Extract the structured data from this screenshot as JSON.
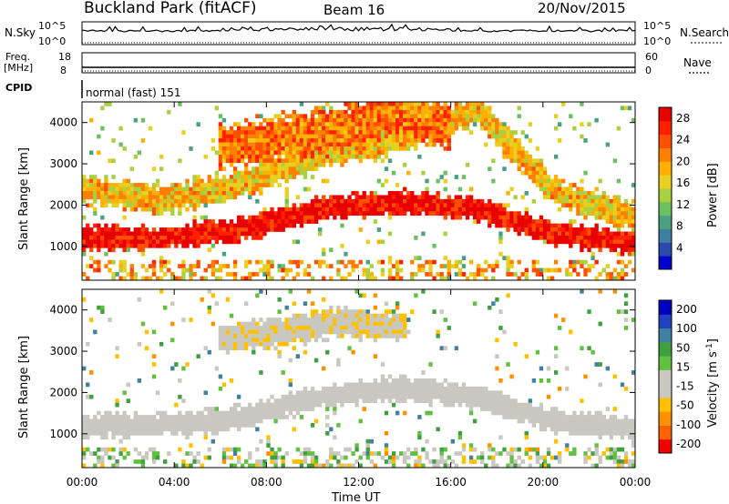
{
  "header": {
    "station": "Buckland Park (fitACF)",
    "beam": "Beam 16",
    "date": "20/Nov/2015"
  },
  "top_panels": {
    "nsky": {
      "label": "N.Sky",
      "tick_top": "10^5",
      "tick_bottom": "10^0"
    },
    "nsearch": {
      "label": "N.Search",
      "tick_top": "10^5",
      "tick_bottom": "10^0"
    },
    "freq": {
      "label_line1": "Freq.",
      "label_line2": "[MHz]",
      "tick_top": "18",
      "tick_bottom": "8"
    },
    "nave": {
      "label": "Nave",
      "tick_top": "60",
      "tick_bottom": "0"
    },
    "cpid": {
      "label": "CPID",
      "value": "normal (fast) 151"
    }
  },
  "colors": {
    "power_scale": [
      "#0000d0",
      "#2a48b0",
      "#3d7fa0",
      "#4aa080",
      "#6cc060",
      "#a8d040",
      "#e8d020",
      "#ffb000",
      "#ff8000",
      "#ff5000",
      "#ff2000",
      "#e80000"
    ],
    "velocity_scale": [
      "#f00000",
      "#ff6000",
      "#ff9000",
      "#ffc000",
      "#c8c8c0",
      "#c8c8c0",
      "#60c040",
      "#40a040",
      "#4080a0",
      "#2040c0",
      "#0000c0"
    ]
  },
  "chart_data": [
    {
      "type": "heatmap",
      "title": "Power",
      "xlabel": "Time UT",
      "ylabel": "Slant Range [km]",
      "xlim": [
        "00:00",
        "24:00"
      ],
      "ylim": [
        180,
        4500
      ],
      "x_ticks": [
        "00:00",
        "04:00",
        "08:00",
        "12:00",
        "16:00",
        "20:00",
        "00:00"
      ],
      "y_ticks": [
        1000,
        2000,
        3000,
        4000
      ],
      "colorbar_label": "Power [dB]",
      "colorbar_ticks": [
        4,
        8,
        12,
        16,
        20,
        24,
        28
      ],
      "colorbar_range": [
        0,
        30
      ],
      "features": [
        {
          "name": "strong band",
          "t_start": 0,
          "t_end": 24,
          "range_center_km": [
            1200,
            1200,
            1400,
            1900,
            2100,
            1900,
            1300,
            1100
          ],
          "value_db": 28
        },
        {
          "name": "lower scatter",
          "t_start": 0,
          "t_end": 24,
          "range_center_km": [
            2400,
            2100,
            2500,
            3200,
            3600,
            4300,
            2300,
            1700
          ],
          "value_db": 18
        },
        {
          "name": "upper diffuse",
          "t_start": 6,
          "t_end": 16,
          "range_center_km": [
            3400,
            3600,
            3800,
            4200,
            3900
          ],
          "value_db": 22
        }
      ]
    },
    {
      "type": "heatmap",
      "title": "Velocity",
      "xlabel": "Time UT",
      "ylabel": "Slant Range [km]",
      "xlim": [
        "00:00",
        "24:00"
      ],
      "ylim": [
        180,
        4500
      ],
      "x_ticks": [
        "00:00",
        "04:00",
        "08:00",
        "12:00",
        "16:00",
        "20:00",
        "00:00"
      ],
      "y_ticks": [
        1000,
        2000,
        3000,
        4000
      ],
      "colorbar_label": "Velocity [m s^-1]",
      "colorbar_ticks": [
        200,
        100,
        50,
        15,
        -15,
        -50,
        -100,
        -200
      ],
      "colorbar_range": [
        -250,
        250
      ],
      "features": [
        {
          "name": "ground scatter (grey)",
          "t_start": 0,
          "t_end": 24,
          "range_center_km": [
            1200,
            1200,
            1400,
            1900,
            2100,
            1900,
            1300,
            1100
          ],
          "value_ms": 0
        },
        {
          "name": "negative velocity patches",
          "t_start": 6,
          "t_end": 14,
          "range_center_km": [
            3300,
            3500,
            3700,
            3600
          ],
          "value_ms": -60
        }
      ]
    }
  ],
  "axis_label": {
    "slant_range": "Slant Range [km]",
    "time": "Time UT",
    "power_cb": "Power [dB]",
    "velocity_cb_a": "Velocity [m s",
    "velocity_cb_sup": "-1",
    "velocity_cb_b": "]"
  }
}
